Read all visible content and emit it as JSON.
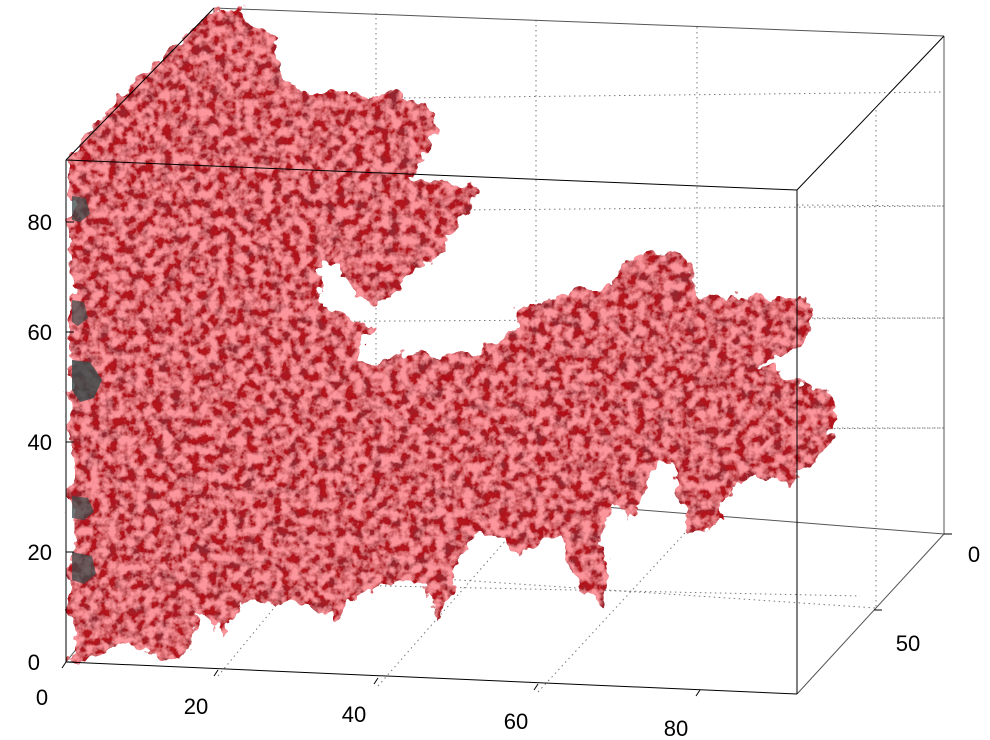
{
  "chart_data": {
    "type": "isosurface-3d",
    "title": "",
    "xlabel": "",
    "ylabel": "",
    "zlabel": "",
    "x_ticks": [
      "0",
      "20",
      "40",
      "60",
      "80"
    ],
    "y_ticks": [
      "0",
      "50"
    ],
    "z_ticks": [
      "0",
      "20",
      "40",
      "60",
      "80"
    ],
    "xlim": [
      0,
      100
    ],
    "ylim": [
      0,
      100
    ],
    "zlim": [
      0,
      100
    ],
    "grid": true,
    "box": true,
    "surface_color": "#b3131a",
    "highlight_color": "#f04650",
    "shadow_color": "#5a0508"
  }
}
